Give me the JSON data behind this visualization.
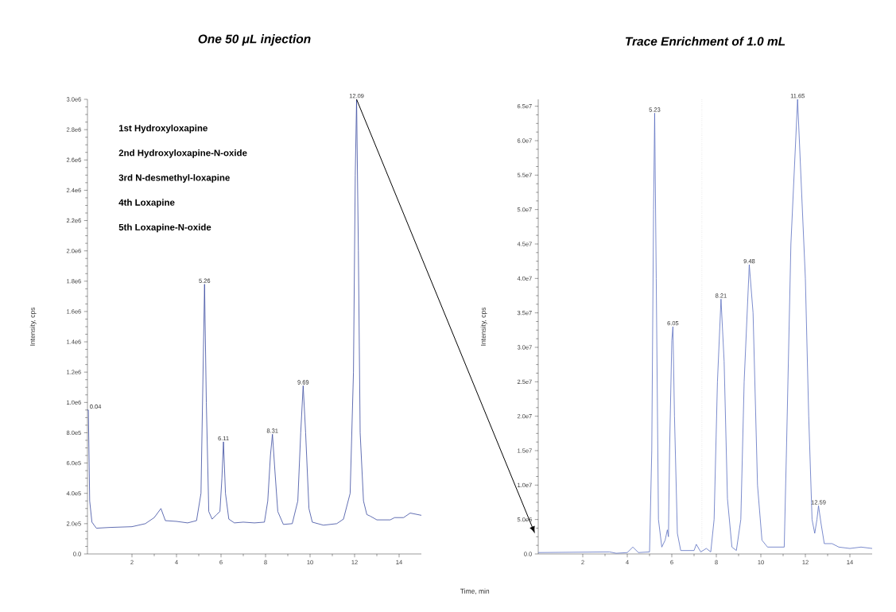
{
  "chart_data": [
    {
      "type": "line",
      "title": "One 50 μL injection",
      "xlabel": "Time, min",
      "ylabel": "Intensity, cps",
      "color": "#3a4aa0",
      "xlim": [
        0,
        15
      ],
      "ylim": [
        0,
        3000000
      ],
      "xticks": [
        2,
        4,
        6,
        8,
        10,
        12,
        14
      ],
      "yticks": [
        {
          "value": 0,
          "label": "0.0"
        },
        {
          "value": 200000,
          "label": "2.0e5"
        },
        {
          "value": 400000,
          "label": "4.0e5"
        },
        {
          "value": 600000,
          "label": "6.0e5"
        },
        {
          "value": 800000,
          "label": "8.0e5"
        },
        {
          "value": 1000000,
          "label": "1.0e6"
        },
        {
          "value": 1200000,
          "label": "1.2e6"
        },
        {
          "value": 1400000,
          "label": "1.4e6"
        },
        {
          "value": 1600000,
          "label": "1.6e6"
        },
        {
          "value": 1800000,
          "label": "1.8e6"
        },
        {
          "value": 2000000,
          "label": "2.0e6"
        },
        {
          "value": 2200000,
          "label": "2.2e6"
        },
        {
          "value": 2400000,
          "label": "2.4e6"
        },
        {
          "value": 2600000,
          "label": "2.6e6"
        },
        {
          "value": 2800000,
          "label": "2.8e6"
        },
        {
          "value": 3000000,
          "label": "3.0e6"
        }
      ],
      "x": [
        0,
        0.04,
        0.1,
        0.2,
        0.4,
        1.0,
        2.0,
        2.6,
        3.0,
        3.3,
        3.5,
        4.0,
        4.5,
        4.9,
        5.1,
        5.26,
        5.34,
        5.45,
        5.6,
        5.8,
        5.95,
        6.04,
        6.11,
        6.2,
        6.35,
        6.6,
        7.0,
        7.5,
        7.95,
        8.1,
        8.22,
        8.31,
        8.42,
        8.55,
        8.8,
        9.2,
        9.45,
        9.58,
        9.69,
        9.8,
        9.95,
        10.1,
        10.6,
        11.2,
        11.5,
        11.8,
        11.95,
        12.03,
        12.09,
        12.17,
        12.25,
        12.4,
        12.55,
        12.7,
        13.0,
        13.6,
        13.8,
        14.2,
        14.5,
        15.0
      ],
      "values": [
        950000,
        950000,
        350000,
        210000,
        170000,
        175000,
        180000,
        200000,
        240000,
        300000,
        220000,
        215000,
        205000,
        220000,
        400000,
        1780000,
        1000000,
        280000,
        230000,
        260000,
        280000,
        500000,
        740000,
        400000,
        230000,
        205000,
        210000,
        205000,
        210000,
        350000,
        650000,
        790000,
        550000,
        280000,
        195000,
        200000,
        350000,
        800000,
        1110000,
        800000,
        300000,
        210000,
        190000,
        200000,
        230000,
        400000,
        1200000,
        2500000,
        3000000,
        2000000,
        800000,
        350000,
        260000,
        250000,
        225000,
        225000,
        240000,
        240000,
        270000,
        255000
      ],
      "annotations": [
        {
          "text": "0.04",
          "x": 0.04,
          "y": 950000
        },
        {
          "text": "5.26",
          "x": 5.26,
          "y": 1780000
        },
        {
          "text": "6.11",
          "x": 6.11,
          "y": 740000
        },
        {
          "text": "8.31",
          "x": 8.31,
          "y": 790000
        },
        {
          "text": "9.69",
          "x": 9.69,
          "y": 1110000
        },
        {
          "text": "12.09",
          "x": 12.09,
          "y": 3000000
        },
        "1st Hydroxyloxapine",
        "2nd Hydroxyloxapine-N-oxide",
        "3rd N-desmethyl-loxapine",
        "4th Loxapine",
        "5th Loxapine-N-oxide"
      ]
    },
    {
      "type": "line",
      "title": "Trace Enrichment of 1.0 mL",
      "ylabel": "Intensity, cps",
      "color": "#5a6fc0",
      "xlim": [
        0,
        15
      ],
      "ylim": [
        0,
        66000000
      ],
      "xticks": [
        2,
        4,
        6,
        8,
        10,
        12,
        14
      ],
      "yticks": [
        {
          "value": 0,
          "label": "0.0"
        },
        {
          "value": 5000000,
          "label": "5.0e6"
        },
        {
          "value": 10000000,
          "label": "1.0e7"
        },
        {
          "value": 15000000,
          "label": "1.5e7"
        },
        {
          "value": 20000000,
          "label": "2.0e7"
        },
        {
          "value": 25000000,
          "label": "2.5e7"
        },
        {
          "value": 30000000,
          "label": "3.0e7"
        },
        {
          "value": 35000000,
          "label": "3.5e7"
        },
        {
          "value": 40000000,
          "label": "4.0e7"
        },
        {
          "value": 45000000,
          "label": "4.5e7"
        },
        {
          "value": 50000000,
          "label": "5.0e7"
        },
        {
          "value": 55000000,
          "label": "5.5e7"
        },
        {
          "value": 60000000,
          "label": "6.0e7"
        },
        {
          "value": 65000000,
          "label": "6.5e7"
        }
      ],
      "x": [
        0,
        3.2,
        3.5,
        4.0,
        4.25,
        4.5,
        5.0,
        5.1,
        5.18,
        5.23,
        5.3,
        5.4,
        5.55,
        5.7,
        5.8,
        5.85,
        5.9,
        6.0,
        6.05,
        6.12,
        6.25,
        6.4,
        7.0,
        7.1,
        7.3,
        7.55,
        7.75,
        7.9,
        8.05,
        8.21,
        8.35,
        8.5,
        8.7,
        8.9,
        9.1,
        9.25,
        9.48,
        9.65,
        9.85,
        10.05,
        10.3,
        11.05,
        11.15,
        11.35,
        11.65,
        12.0,
        12.15,
        12.3,
        12.42,
        12.52,
        12.59,
        12.7,
        12.85,
        13.2,
        13.5,
        14.0,
        14.5,
        15.0
      ],
      "values": [
        200000,
        300000,
        100000,
        200000,
        1000000,
        200000,
        300000,
        15000000,
        50000000,
        64000000,
        40000000,
        5000000,
        1000000,
        2000000,
        3500000,
        2500000,
        15000000,
        31000000,
        33000000,
        20000000,
        3000000,
        500000,
        500000,
        1400000,
        300000,
        800000,
        300000,
        5000000,
        25000000,
        37000000,
        28000000,
        8000000,
        1000000,
        500000,
        5000000,
        25000000,
        42000000,
        35000000,
        10000000,
        2000000,
        1000000,
        1000000,
        15000000,
        45000000,
        66000000,
        40000000,
        20000000,
        5000000,
        3000000,
        5000000,
        7000000,
        4500000,
        1500000,
        1500000,
        1000000,
        800000,
        1000000,
        800000
      ],
      "ref_lines": [
        {
          "axis": "x",
          "value": 7.35,
          "color": "#808080",
          "line_style": "dotted"
        }
      ],
      "annotations": [
        {
          "text": "5.23",
          "x": 5.23,
          "y": 64000000
        },
        {
          "text": "6.05",
          "x": 6.05,
          "y": 33000000
        },
        {
          "text": "8.21",
          "x": 8.21,
          "y": 37000000
        },
        {
          "text": "9.48",
          "x": 9.48,
          "y": 42000000
        },
        {
          "text": "11.65",
          "x": 11.65,
          "y": 66000000
        },
        {
          "text": "12.59",
          "x": 12.59,
          "y": 7000000
        }
      ]
    }
  ]
}
